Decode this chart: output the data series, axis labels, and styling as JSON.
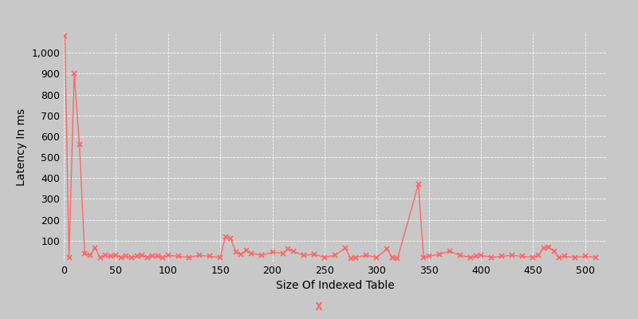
{
  "x": [
    1,
    5,
    10,
    15,
    20,
    25,
    30,
    35,
    40,
    45,
    50,
    55,
    60,
    65,
    70,
    75,
    80,
    85,
    90,
    95,
    100,
    110,
    120,
    130,
    140,
    150,
    155,
    160,
    165,
    170,
    175,
    180,
    190,
    200,
    210,
    215,
    220,
    230,
    240,
    250,
    260,
    270,
    275,
    280,
    290,
    300,
    310,
    315,
    320,
    340,
    345,
    350,
    360,
    370,
    380,
    390,
    395,
    400,
    410,
    420,
    430,
    440,
    450,
    455,
    460,
    465,
    470,
    475,
    480,
    490,
    500,
    510
  ],
  "y": [
    1080,
    20,
    900,
    560,
    40,
    30,
    65,
    20,
    30,
    25,
    30,
    20,
    25,
    20,
    25,
    30,
    20,
    25,
    25,
    20,
    30,
    25,
    20,
    30,
    25,
    20,
    120,
    110,
    45,
    35,
    55,
    40,
    30,
    45,
    40,
    60,
    50,
    30,
    35,
    20,
    30,
    65,
    15,
    20,
    30,
    20,
    60,
    20,
    15,
    370,
    20,
    25,
    35,
    50,
    30,
    20,
    25,
    30,
    20,
    25,
    30,
    25,
    20,
    30,
    65,
    70,
    50,
    20,
    25,
    20,
    25,
    20
  ],
  "color": "#FF6666",
  "line_color": "#FF6666",
  "marker": "x",
  "markersize": 5,
  "linewidth": 1.0,
  "xlabel": "Size Of Indexed Table",
  "ylabel": "Latency In ms",
  "xlim": [
    0,
    520
  ],
  "ylim": [
    0,
    1100
  ],
  "yticks": [
    0,
    100,
    200,
    300,
    400,
    500,
    600,
    700,
    800,
    900,
    1000
  ],
  "xticks": [
    0,
    50,
    100,
    150,
    200,
    250,
    300,
    350,
    400,
    450,
    500
  ],
  "grid_color": "#ffffff",
  "bg_color": "#c8c8c8",
  "fig_bg_color": "#c8c8c8",
  "xlabel_fontsize": 10,
  "ylabel_fontsize": 10,
  "tick_fontsize": 9
}
